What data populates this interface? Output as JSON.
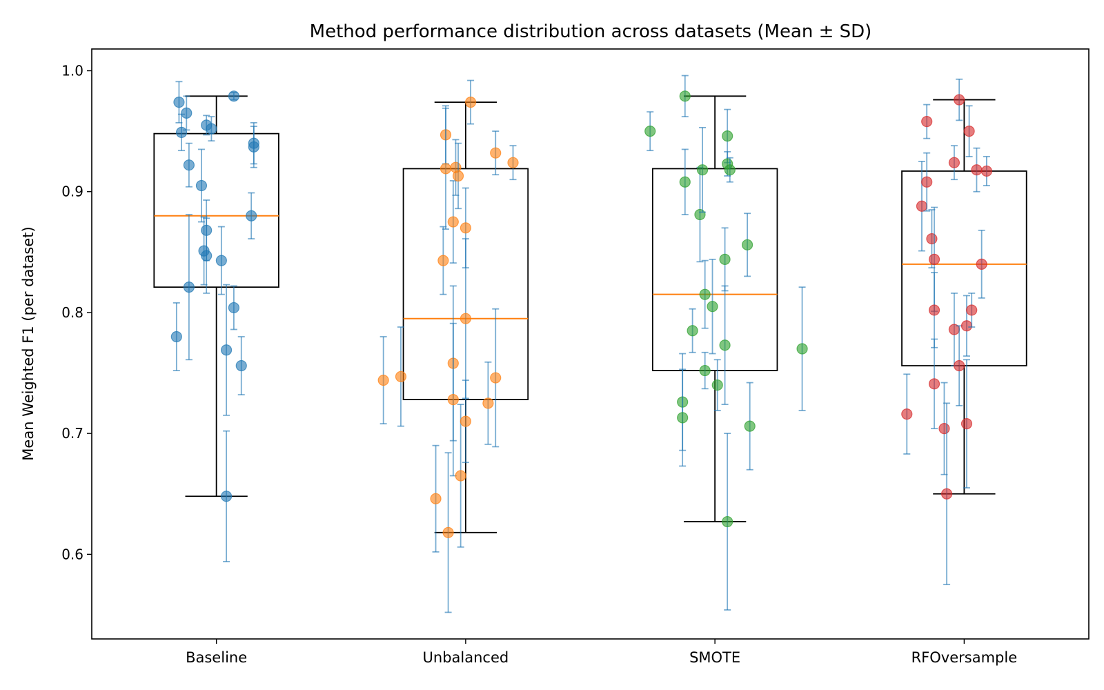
{
  "chart_data": {
    "type": "box",
    "title": "Method performance distribution across datasets (Mean ± SD)",
    "xlabel": "",
    "ylabel": "Mean Weighted F1 (per dataset)",
    "ylim": [
      0.53,
      1.018
    ],
    "yticks": [
      0.6,
      0.7,
      0.8,
      0.9,
      1.0
    ],
    "ytick_labels": [
      "0.6",
      "0.7",
      "0.8",
      "0.9",
      "1.0"
    ],
    "categories": [
      "Baseline",
      "Unbalanced",
      "SMOTE",
      "RFOversample"
    ],
    "grid": false,
    "legend": "none",
    "median_color": "#ff7f0e",
    "errorbar_color": "#1f77b4",
    "series": [
      {
        "color": "#1f77b4",
        "box": {
          "whisker_low": 0.648,
          "q1": 0.821,
          "median": 0.88,
          "q3": 0.948,
          "whisker_high": 0.979
        },
        "points": [
          {
            "jitter": -0.16,
            "y": 0.78,
            "sd": 0.028
          },
          {
            "jitter": -0.15,
            "y": 0.974,
            "sd": 0.017
          },
          {
            "jitter": -0.14,
            "y": 0.949,
            "sd": 0.015
          },
          {
            "jitter": -0.12,
            "y": 0.965,
            "sd": 0.014
          },
          {
            "jitter": -0.11,
            "y": 0.922,
            "sd": 0.018
          },
          {
            "jitter": -0.11,
            "y": 0.821,
            "sd": 0.06
          },
          {
            "jitter": -0.06,
            "y": 0.905,
            "sd": 0.03
          },
          {
            "jitter": -0.05,
            "y": 0.851,
            "sd": 0.028
          },
          {
            "jitter": -0.04,
            "y": 0.847,
            "sd": 0.031
          },
          {
            "jitter": -0.04,
            "y": 0.868,
            "sd": 0.025
          },
          {
            "jitter": -0.04,
            "y": 0.955,
            "sd": 0.008
          },
          {
            "jitter": -0.02,
            "y": 0.952,
            "sd": 0.01
          },
          {
            "jitter": 0.02,
            "y": 0.843,
            "sd": 0.028
          },
          {
            "jitter": 0.04,
            "y": 0.648,
            "sd": 0.054
          },
          {
            "jitter": 0.04,
            "y": 0.769,
            "sd": 0.054
          },
          {
            "jitter": 0.07,
            "y": 0.979,
            "sd": 0.003
          },
          {
            "jitter": 0.07,
            "y": 0.804,
            "sd": 0.018
          },
          {
            "jitter": 0.1,
            "y": 0.756,
            "sd": 0.024
          },
          {
            "jitter": 0.14,
            "y": 0.88,
            "sd": 0.019
          },
          {
            "jitter": 0.15,
            "y": 0.94,
            "sd": 0.017
          },
          {
            "jitter": 0.15,
            "y": 0.937,
            "sd": 0.017
          }
        ]
      },
      {
        "color": "#ff7f0e",
        "box": {
          "whisker_low": 0.618,
          "q1": 0.728,
          "median": 0.795,
          "q3": 0.919,
          "whisker_high": 0.974
        },
        "points": [
          {
            "jitter": -0.33,
            "y": 0.744,
            "sd": 0.036
          },
          {
            "jitter": -0.26,
            "y": 0.747,
            "sd": 0.041
          },
          {
            "jitter": -0.12,
            "y": 0.646,
            "sd": 0.044
          },
          {
            "jitter": -0.09,
            "y": 0.843,
            "sd": 0.028
          },
          {
            "jitter": -0.08,
            "y": 0.947,
            "sd": 0.024
          },
          {
            "jitter": -0.08,
            "y": 0.919,
            "sd": 0.05
          },
          {
            "jitter": -0.07,
            "y": 0.618,
            "sd": 0.066
          },
          {
            "jitter": -0.05,
            "y": 0.875,
            "sd": 0.034
          },
          {
            "jitter": -0.05,
            "y": 0.758,
            "sd": 0.064
          },
          {
            "jitter": -0.05,
            "y": 0.728,
            "sd": 0.063
          },
          {
            "jitter": -0.04,
            "y": 0.92,
            "sd": 0.023
          },
          {
            "jitter": -0.03,
            "y": 0.913,
            "sd": 0.027
          },
          {
            "jitter": -0.02,
            "y": 0.665,
            "sd": 0.059
          },
          {
            "jitter": 0.0,
            "y": 0.795,
            "sd": 0.066
          },
          {
            "jitter": 0.0,
            "y": 0.87,
            "sd": 0.033
          },
          {
            "jitter": 0.0,
            "y": 0.71,
            "sd": 0.034
          },
          {
            "jitter": 0.02,
            "y": 0.974,
            "sd": 0.018
          },
          {
            "jitter": 0.09,
            "y": 0.725,
            "sd": 0.034
          },
          {
            "jitter": 0.12,
            "y": 0.932,
            "sd": 0.018
          },
          {
            "jitter": 0.12,
            "y": 0.746,
            "sd": 0.057
          },
          {
            "jitter": 0.19,
            "y": 0.924,
            "sd": 0.014
          }
        ]
      },
      {
        "color": "#2ca02c",
        "box": {
          "whisker_low": 0.627,
          "q1": 0.752,
          "median": 0.815,
          "q3": 0.919,
          "whisker_high": 0.979
        },
        "points": [
          {
            "jitter": -0.26,
            "y": 0.95,
            "sd": 0.016
          },
          {
            "jitter": -0.13,
            "y": 0.726,
            "sd": 0.04
          },
          {
            "jitter": -0.13,
            "y": 0.713,
            "sd": 0.04
          },
          {
            "jitter": -0.12,
            "y": 0.979,
            "sd": 0.017
          },
          {
            "jitter": -0.12,
            "y": 0.908,
            "sd": 0.027
          },
          {
            "jitter": -0.09,
            "y": 0.785,
            "sd": 0.018
          },
          {
            "jitter": -0.06,
            "y": 0.881,
            "sd": 0.039
          },
          {
            "jitter": -0.05,
            "y": 0.918,
            "sd": 0.035
          },
          {
            "jitter": -0.04,
            "y": 0.815,
            "sd": 0.028
          },
          {
            "jitter": -0.04,
            "y": 0.752,
            "sd": 0.015
          },
          {
            "jitter": -0.01,
            "y": 0.805,
            "sd": 0.039
          },
          {
            "jitter": 0.01,
            "y": 0.74,
            "sd": 0.021
          },
          {
            "jitter": 0.04,
            "y": 0.844,
            "sd": 0.026
          },
          {
            "jitter": 0.04,
            "y": 0.773,
            "sd": 0.049
          },
          {
            "jitter": 0.05,
            "y": 0.946,
            "sd": 0.022
          },
          {
            "jitter": 0.05,
            "y": 0.923,
            "sd": 0.01
          },
          {
            "jitter": 0.05,
            "y": 0.627,
            "sd": 0.073
          },
          {
            "jitter": 0.06,
            "y": 0.918,
            "sd": 0.01
          },
          {
            "jitter": 0.14,
            "y": 0.706,
            "sd": 0.036
          },
          {
            "jitter": 0.13,
            "y": 0.856,
            "sd": 0.026
          },
          {
            "jitter": 0.35,
            "y": 0.77,
            "sd": 0.051
          }
        ]
      },
      {
        "color": "#d62728",
        "box": {
          "whisker_low": 0.65,
          "q1": 0.756,
          "median": 0.84,
          "q3": 0.917,
          "whisker_high": 0.976
        },
        "points": [
          {
            "jitter": -0.23,
            "y": 0.716,
            "sd": 0.033
          },
          {
            "jitter": -0.17,
            "y": 0.888,
            "sd": 0.037
          },
          {
            "jitter": -0.15,
            "y": 0.908,
            "sd": 0.024
          },
          {
            "jitter": -0.15,
            "y": 0.958,
            "sd": 0.014
          },
          {
            "jitter": -0.13,
            "y": 0.861,
            "sd": 0.024
          },
          {
            "jitter": -0.12,
            "y": 0.844,
            "sd": 0.043
          },
          {
            "jitter": -0.12,
            "y": 0.741,
            "sd": 0.037
          },
          {
            "jitter": -0.12,
            "y": 0.802,
            "sd": 0.031
          },
          {
            "jitter": -0.08,
            "y": 0.704,
            "sd": 0.038
          },
          {
            "jitter": -0.07,
            "y": 0.65,
            "sd": 0.075
          },
          {
            "jitter": -0.04,
            "y": 0.924,
            "sd": 0.014
          },
          {
            "jitter": -0.04,
            "y": 0.786,
            "sd": 0.03
          },
          {
            "jitter": -0.02,
            "y": 0.976,
            "sd": 0.017
          },
          {
            "jitter": -0.02,
            "y": 0.756,
            "sd": 0.033
          },
          {
            "jitter": 0.01,
            "y": 0.708,
            "sd": 0.053
          },
          {
            "jitter": 0.01,
            "y": 0.789,
            "sd": 0.025
          },
          {
            "jitter": 0.02,
            "y": 0.95,
            "sd": 0.021
          },
          {
            "jitter": 0.03,
            "y": 0.802,
            "sd": 0.014
          },
          {
            "jitter": 0.05,
            "y": 0.918,
            "sd": 0.018
          },
          {
            "jitter": 0.07,
            "y": 0.84,
            "sd": 0.028
          },
          {
            "jitter": 0.09,
            "y": 0.917,
            "sd": 0.012
          }
        ]
      }
    ]
  }
}
